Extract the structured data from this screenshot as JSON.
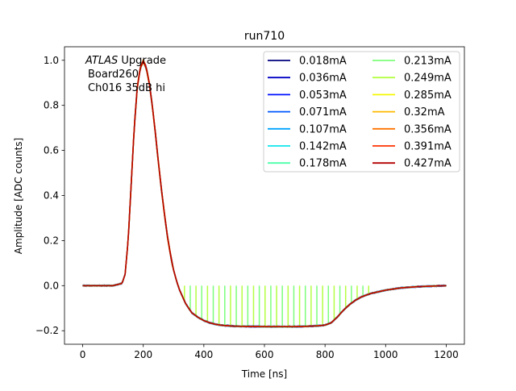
{
  "chart_data": {
    "type": "line",
    "title": "run710",
    "xlabel": "Time [ns]",
    "ylabel": "Amplitude [ADC counts]",
    "xlim": [
      -60,
      1260
    ],
    "ylim": [
      -0.26,
      1.06
    ],
    "xticks": [
      0,
      200,
      400,
      600,
      800,
      1000,
      1200
    ],
    "yticks": [
      -0.2,
      0.0,
      0.2,
      0.4,
      0.6,
      0.8,
      1.0
    ],
    "xtick_labels": [
      "0",
      "200",
      "400",
      "600",
      "800",
      "1000",
      "1200"
    ],
    "ytick_labels": [
      "−0.2",
      "0.0",
      "0.2",
      "0.4",
      "0.6",
      "0.8",
      "1.0"
    ],
    "annotation": {
      "line1_italic": "ATLAS",
      "line1_rest": " Upgrade",
      "line2": "Board260",
      "line3": "Ch016 35dB hi"
    },
    "legend_position": "upper right",
    "legend_columns": 2,
    "series": [
      {
        "name": "0.018mA",
        "color": "#00007f"
      },
      {
        "name": "0.036mA",
        "color": "#0000c4"
      },
      {
        "name": "0.053mA",
        "color": "#0010ff"
      },
      {
        "name": "0.071mA",
        "color": "#0058ff"
      },
      {
        "name": "0.107mA",
        "color": "#00a4ff"
      },
      {
        "name": "0.142mA",
        "color": "#0de6eb"
      },
      {
        "name": "0.178mA",
        "color": "#4dffaa"
      },
      {
        "name": "0.213mA",
        "color": "#7dff7a"
      },
      {
        "name": "0.249mA",
        "color": "#b4ff43"
      },
      {
        "name": "0.285mA",
        "color": "#f4f802"
      },
      {
        "name": "0.32mA",
        "color": "#ffb900"
      },
      {
        "name": "0.356mA",
        "color": "#ff7300"
      },
      {
        "name": "0.391mA",
        "color": "#ff3000"
      },
      {
        "name": "0.427mA",
        "color": "#b20000"
      }
    ],
    "pulse_shape": {
      "x": [
        0,
        50,
        100,
        130,
        140,
        150,
        160,
        170,
        180,
        190,
        200,
        210,
        220,
        230,
        240,
        250,
        260,
        270,
        280,
        290,
        300,
        310,
        320,
        330,
        340,
        350,
        360,
        380,
        400,
        420,
        440,
        460,
        480,
        500,
        550,
        600,
        650,
        700,
        750,
        780,
        800,
        820,
        840,
        860,
        880,
        900,
        920,
        950,
        1000,
        1050,
        1100,
        1150,
        1200
      ],
      "y": [
        0.0,
        0.0,
        0.0,
        0.01,
        0.05,
        0.2,
        0.45,
        0.7,
        0.88,
        0.97,
        1.0,
        0.97,
        0.9,
        0.8,
        0.68,
        0.55,
        0.43,
        0.32,
        0.22,
        0.14,
        0.07,
        0.02,
        -0.02,
        -0.05,
        -0.08,
        -0.1,
        -0.12,
        -0.14,
        -0.155,
        -0.165,
        -0.172,
        -0.176,
        -0.178,
        -0.18,
        -0.181,
        -0.182,
        -0.182,
        -0.182,
        -0.18,
        -0.178,
        -0.175,
        -0.165,
        -0.14,
        -0.11,
        -0.085,
        -0.065,
        -0.05,
        -0.035,
        -0.02,
        -0.01,
        -0.005,
        -0.002,
        0.0
      ]
    },
    "spikes": {
      "x_start": 165,
      "x_step": 19,
      "x_end": 960,
      "top_value": 0.0,
      "colors": [
        "#7dff7a",
        "#b4ff43"
      ]
    }
  }
}
